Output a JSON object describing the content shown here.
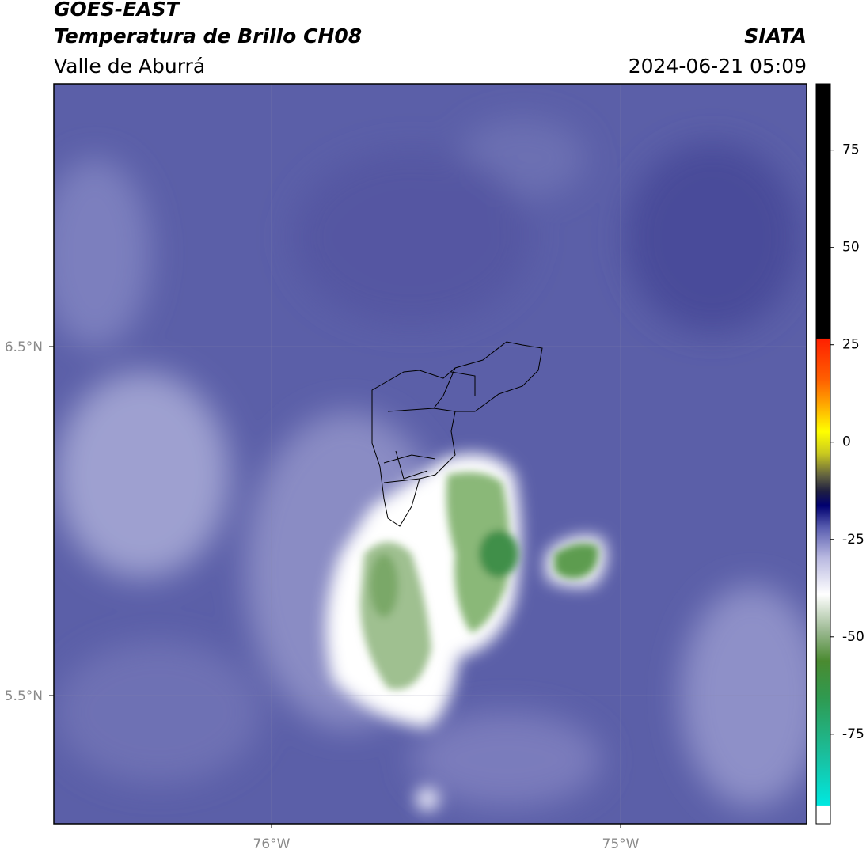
{
  "header": {
    "title": "GOES-EAST",
    "subtitle": "Temperatura de Brillo CH08",
    "region": "Valle de Aburrá",
    "source": "SIATA",
    "datetime": "2024-06-21 05:09"
  },
  "map": {
    "lat_labels": [
      "6.5°N",
      "5.5°N"
    ],
    "lon_labels": [
      "76°W",
      "75°W"
    ]
  },
  "colorbar": {
    "lim": [
      -98,
      92
    ],
    "ticks": [
      75,
      50,
      25,
      0,
      -25,
      -50,
      -75
    ]
  }
}
